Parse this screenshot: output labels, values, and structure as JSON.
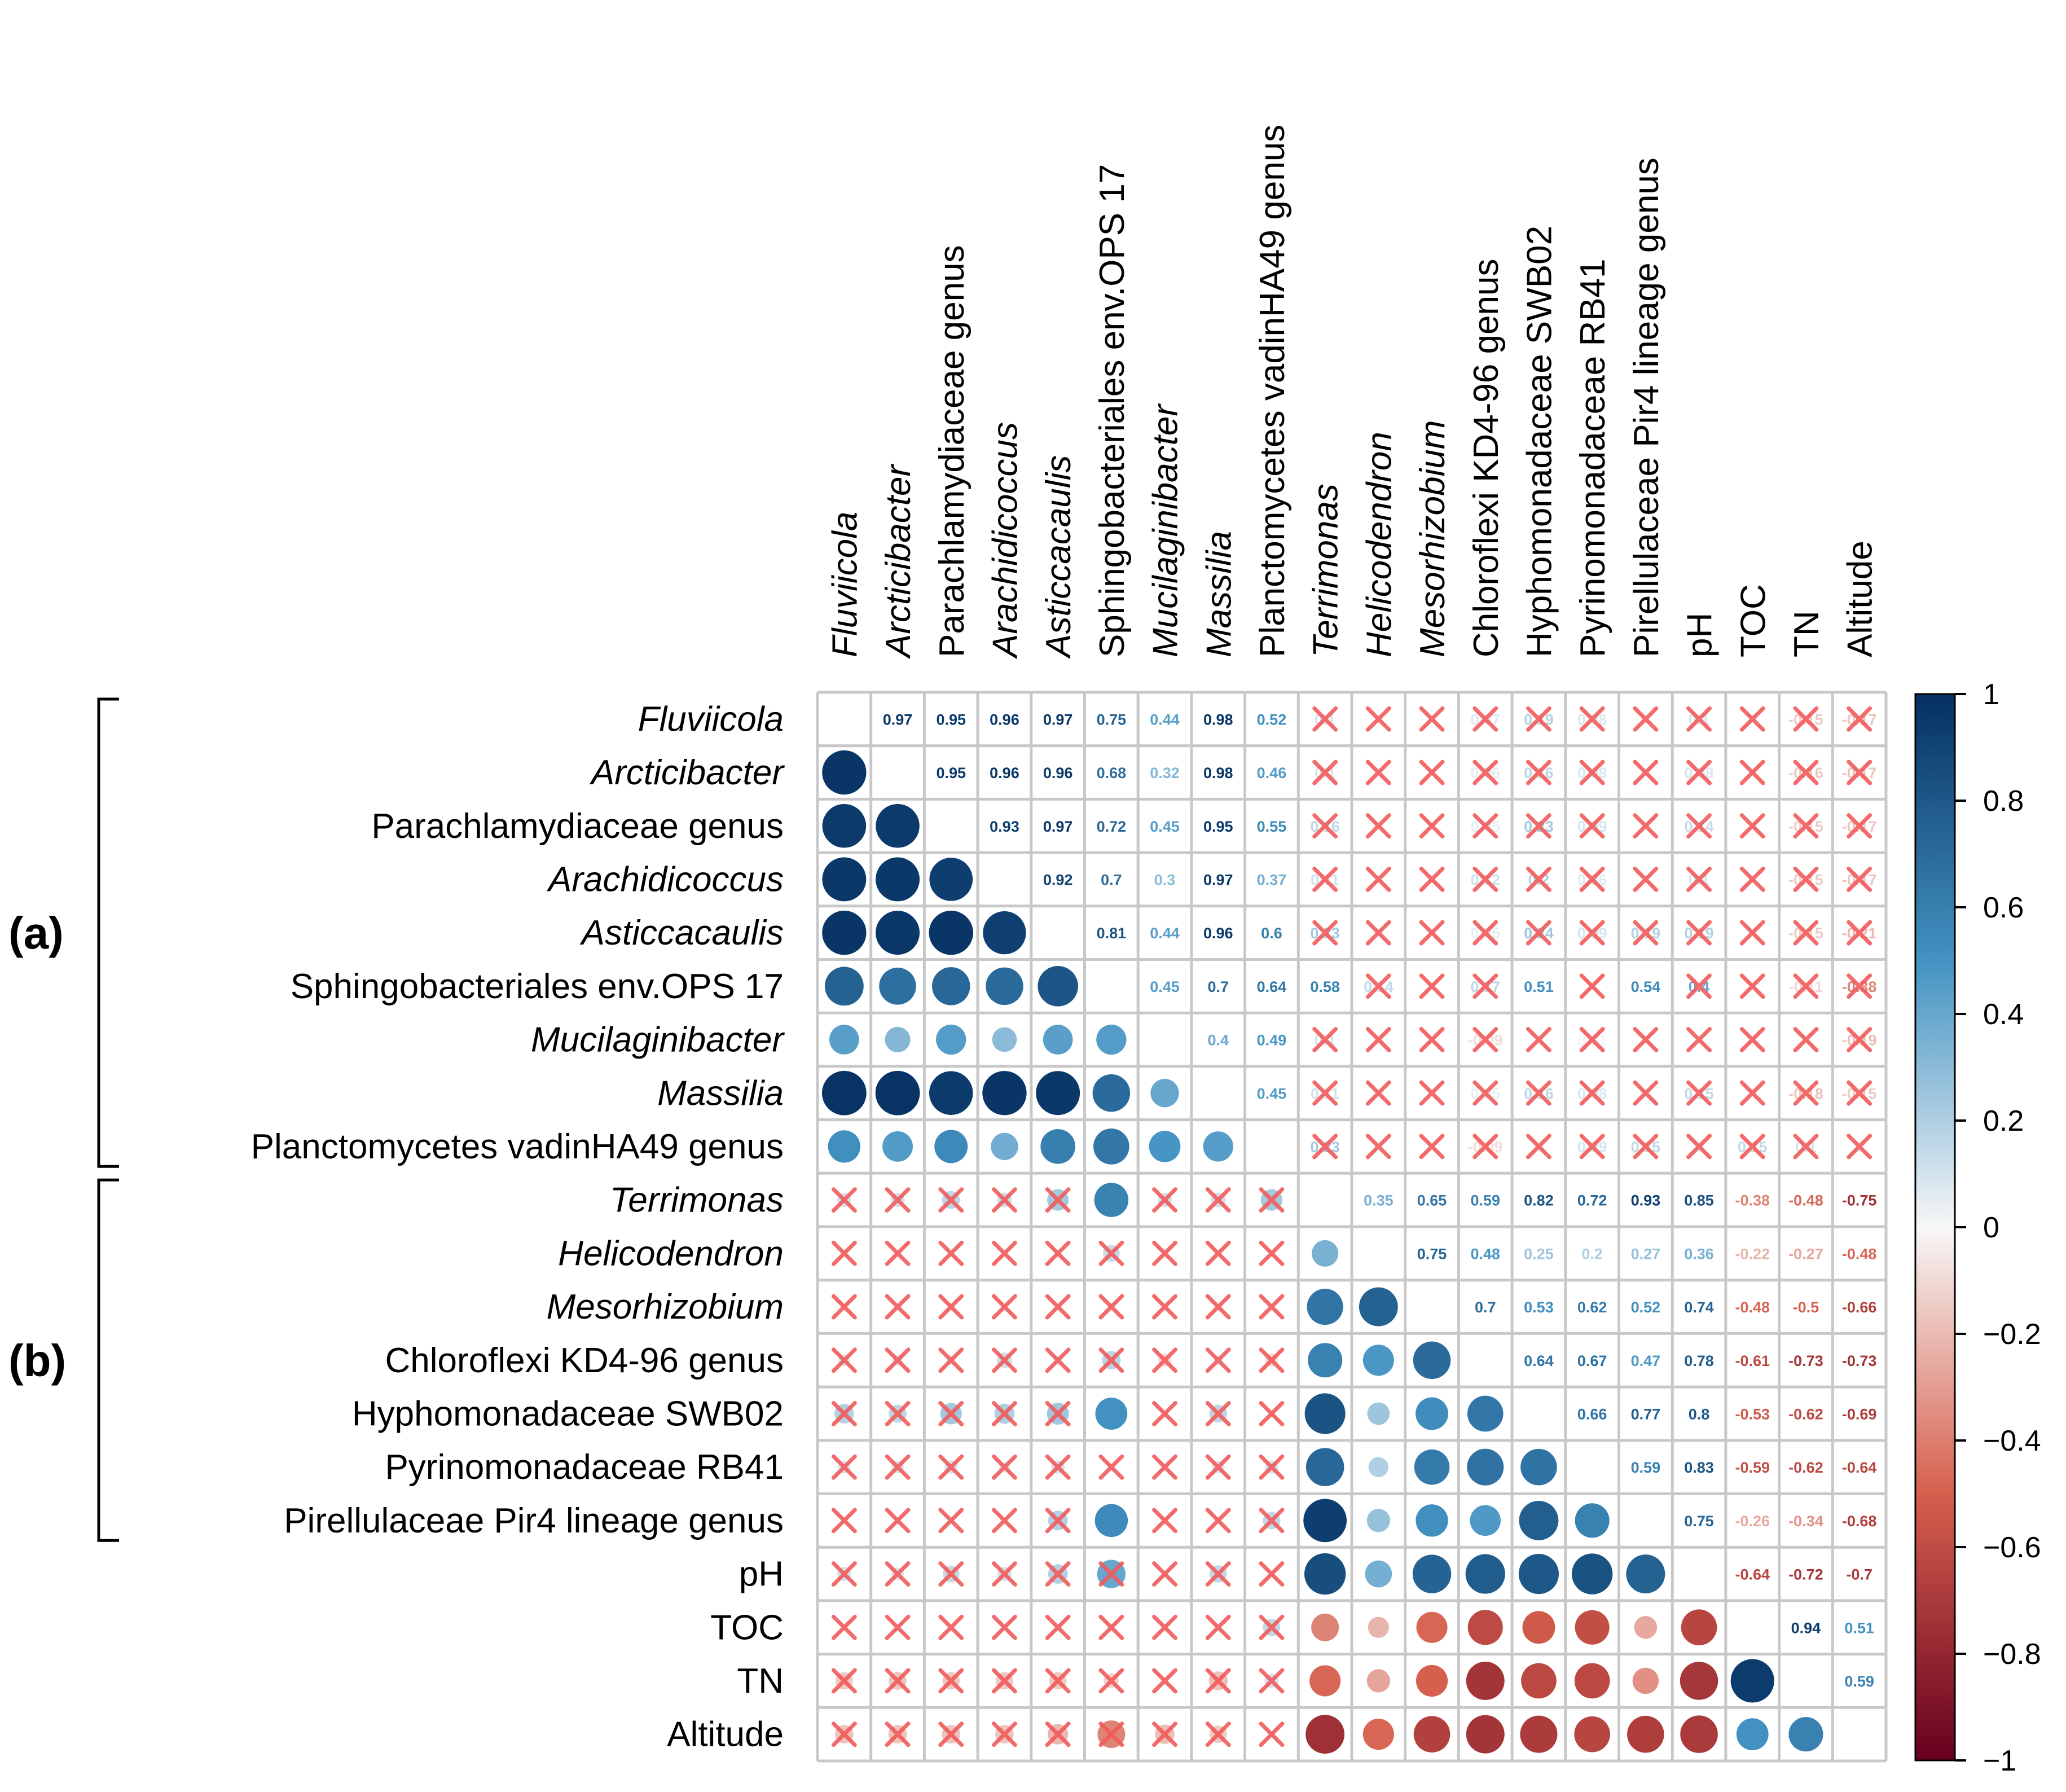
{
  "chart_data": {
    "type": "heatmap",
    "variables": [
      {
        "name": "Fluviicola",
        "italic": true
      },
      {
        "name": "Arcticibacter",
        "italic": true
      },
      {
        "name": "Parachlamydiaceae genus",
        "italic": false
      },
      {
        "name": "Arachidicoccus",
        "italic": true
      },
      {
        "name": "Asticcacaulis",
        "italic": true
      },
      {
        "name": "Sphingobacteriales env.OPS 17",
        "italic": false
      },
      {
        "name": "Mucilaginibacter",
        "italic": true
      },
      {
        "name": "Massilia",
        "italic": true
      },
      {
        "name": "Planctomycetes vadinHA49 genus",
        "italic": false
      },
      {
        "name": "Terrimonas",
        "italic": true
      },
      {
        "name": "Helicodendron",
        "italic": true
      },
      {
        "name": "Mesorhizobium",
        "italic": true
      },
      {
        "name": "Chloroflexi KD4-96 genus",
        "italic": false
      },
      {
        "name": "Hyphomonadaceae SWB02",
        "italic": false
      },
      {
        "name": "Pyrinomonadaceae RB41",
        "italic": false
      },
      {
        "name": "Pirellulaceae Pir4 lineage genus",
        "italic": false
      },
      {
        "name": "pH",
        "italic": false
      },
      {
        "name": "TOC",
        "italic": false
      },
      {
        "name": "TN",
        "italic": false
      },
      {
        "name": "Altitude",
        "italic": false
      }
    ],
    "groups": [
      {
        "label": "(a)",
        "from": 0,
        "to": 8
      },
      {
        "label": "(b)",
        "from": 9,
        "to": 15
      }
    ],
    "upper_labels": [
      [
        "",
        "0.97",
        "0.95",
        "0.96",
        "0.97",
        "0.75",
        "0.44",
        "0.98",
        "0.52",
        "0.1",
        "",
        "",
        "0.07",
        "0.19",
        "0.08",
        "",
        "0.1",
        "",
        "-0.15",
        "-0.17"
      ],
      [
        "",
        "",
        "0.95",
        "0.96",
        "0.96",
        "0.68",
        "0.32",
        "0.98",
        "0.46",
        "0.1",
        "",
        "",
        "0.06",
        "0.16",
        "0.08",
        "",
        "0.08",
        "",
        "-0.16",
        "-0.17"
      ],
      [
        "",
        "",
        "",
        "0.93",
        "0.97",
        "0.72",
        "0.45",
        "0.95",
        "0.55",
        "0.16",
        "",
        "",
        "0.05",
        "0.23",
        "0.09",
        "",
        "0.14",
        "",
        "-0.15",
        "-0.17"
      ],
      [
        "",
        "",
        "",
        "",
        "0.92",
        "0.7",
        "0.3",
        "0.97",
        "0.37",
        "0.11",
        "",
        "",
        "0.12",
        "0.2",
        "0.06",
        "",
        "0.1",
        "",
        "-0.15",
        "-0.17"
      ],
      [
        "",
        "",
        "",
        "",
        "",
        "0.81",
        "0.44",
        "0.96",
        "0.6",
        "0.23",
        "",
        "",
        "0.05",
        "0.24",
        "0.09",
        "0.19",
        "0.19",
        "",
        "-0.15",
        "-0.21"
      ],
      [
        "",
        "",
        "",
        "",
        "",
        "",
        "0.45",
        "0.7",
        "0.64",
        "0.58",
        "0.14",
        "",
        "0.17",
        "0.51",
        "",
        "0.54",
        "0.4",
        "",
        "-0.11",
        "-0.38"
      ],
      [
        "",
        "",
        "",
        "",
        "",
        "",
        "",
        "0.4",
        "0.49",
        "0.1",
        "",
        "",
        "-0.09",
        "",
        "0.01",
        "",
        "",
        "",
        "",
        "-0.19"
      ],
      [
        "",
        "",
        "",
        "",
        "",
        "",
        "",
        "",
        "0.45",
        "0.11",
        "",
        "",
        "0.05",
        "0.16",
        "0.08",
        "",
        "0.15",
        "",
        "-0.18",
        "-0.15"
      ],
      [
        "",
        "",
        "",
        "",
        "",
        "",
        "",
        "",
        "",
        "0.23",
        "",
        "",
        "-0.09",
        "",
        "0.09",
        "0.15",
        "",
        "0.15",
        "0.1",
        ""
      ],
      [
        "",
        "",
        "",
        "",
        "",
        "",
        "",
        "",
        "",
        "",
        "0.35",
        "0.65",
        "0.59",
        "0.82",
        "0.72",
        "0.93",
        "0.85",
        "-0.38",
        "-0.48",
        "-0.75"
      ],
      [
        "",
        "",
        "",
        "",
        "",
        "",
        "",
        "",
        "",
        "",
        "",
        "0.75",
        "0.48",
        "0.25",
        "0.2",
        "0.27",
        "0.36",
        "-0.22",
        "-0.27",
        "-0.48"
      ],
      [
        "",
        "",
        "",
        "",
        "",
        "",
        "",
        "",
        "",
        "",
        "",
        "",
        "0.7",
        "0.53",
        "0.62",
        "0.52",
        "0.74",
        "-0.48",
        "-0.5",
        "-0.66"
      ],
      [
        "",
        "",
        "",
        "",
        "",
        "",
        "",
        "",
        "",
        "",
        "",
        "",
        "",
        "0.64",
        "0.67",
        "0.47",
        "0.78",
        "-0.61",
        "-0.73",
        "-0.73"
      ],
      [
        "",
        "",
        "",
        "",
        "",
        "",
        "",
        "",
        "",
        "",
        "",
        "",
        "",
        "",
        "0.66",
        "0.77",
        "0.8",
        "-0.53",
        "-0.62",
        "-0.69"
      ],
      [
        "",
        "",
        "",
        "",
        "",
        "",
        "",
        "",
        "",
        "",
        "",
        "",
        "",
        "",
        "",
        "0.59",
        "0.83",
        "-0.59",
        "-0.62",
        "-0.64"
      ],
      [
        "",
        "",
        "",
        "",
        "",
        "",
        "",
        "",
        "",
        "",
        "",
        "",
        "",
        "",
        "",
        "",
        "0.75",
        "-0.26",
        "-0.34",
        "-0.68"
      ],
      [
        "",
        "",
        "",
        "",
        "",
        "",
        "",
        "",
        "",
        "",
        "",
        "",
        "",
        "",
        "",
        "",
        "",
        "-0.64",
        "-0.72",
        "-0.7"
      ],
      [
        "",
        "",
        "",
        "",
        "",
        "",
        "",
        "",
        "",
        "",
        "",
        "",
        "",
        "",
        "",
        "",
        "",
        "",
        "0.94",
        "0.51"
      ],
      [
        "",
        "",
        "",
        "",
        "",
        "",
        "",
        "",
        "",
        "",
        "",
        "",
        "",
        "",
        "",
        "",
        "",
        "",
        "",
        "0.59"
      ],
      [
        "",
        "",
        "",
        "",
        "",
        "",
        "",
        "",
        "",
        "",
        "",
        "",
        "",
        "",
        "",
        "",
        "",
        "",
        "",
        ""
      ]
    ],
    "matrix": [
      [
        1,
        0.97,
        0.95,
        0.96,
        0.97,
        0.75,
        0.44,
        0.98,
        0.52,
        0.1,
        0.02,
        0.02,
        0.07,
        0.19,
        0.08,
        0.02,
        0.1,
        -0.02,
        -0.15,
        -0.17
      ],
      [
        0.97,
        1,
        0.95,
        0.96,
        0.96,
        0.68,
        0.32,
        0.98,
        0.46,
        0.1,
        0.02,
        0.02,
        0.06,
        0.16,
        0.08,
        0.02,
        0.08,
        -0.02,
        -0.16,
        -0.17
      ],
      [
        0.95,
        0.95,
        1,
        0.93,
        0.97,
        0.72,
        0.45,
        0.95,
        0.55,
        0.16,
        0.02,
        0.02,
        0.05,
        0.23,
        0.09,
        0.02,
        0.14,
        -0.02,
        -0.15,
        -0.17
      ],
      [
        0.96,
        0.96,
        0.93,
        1,
        0.92,
        0.7,
        0.3,
        0.97,
        0.37,
        0.11,
        0.02,
        0.02,
        0.12,
        0.2,
        0.06,
        0.02,
        0.1,
        -0.02,
        -0.15,
        -0.17
      ],
      [
        0.97,
        0.96,
        0.97,
        0.92,
        1,
        0.81,
        0.44,
        0.96,
        0.6,
        0.23,
        0.02,
        0.02,
        0.05,
        0.24,
        0.09,
        0.19,
        0.19,
        -0.02,
        -0.15,
        -0.21
      ],
      [
        0.75,
        0.68,
        0.72,
        0.7,
        0.81,
        1,
        0.45,
        0.7,
        0.64,
        0.58,
        0.14,
        0.03,
        0.17,
        0.51,
        0.03,
        0.54,
        0.4,
        -0.03,
        -0.11,
        -0.38
      ],
      [
        0.44,
        0.32,
        0.45,
        0.3,
        0.44,
        0.45,
        1,
        0.4,
        0.49,
        0.1,
        0.02,
        0.02,
        -0.09,
        0.02,
        0.01,
        0.02,
        0.02,
        -0.02,
        -0.02,
        -0.19
      ],
      [
        0.98,
        0.98,
        0.95,
        0.97,
        0.96,
        0.7,
        0.4,
        1,
        0.45,
        0.11,
        0.02,
        0.02,
        0.05,
        0.16,
        0.08,
        0.02,
        0.15,
        -0.02,
        -0.18,
        -0.15
      ],
      [
        0.52,
        0.46,
        0.55,
        0.37,
        0.6,
        0.64,
        0.49,
        0.45,
        1,
        0.23,
        0.02,
        0.02,
        -0.09,
        0.02,
        0.09,
        0.15,
        0.02,
        0.15,
        0.1,
        0.02
      ],
      [
        0.1,
        0.1,
        0.16,
        0.11,
        0.23,
        0.58,
        0.1,
        0.11,
        0.23,
        1,
        0.35,
        0.65,
        0.59,
        0.82,
        0.72,
        0.93,
        0.85,
        -0.38,
        -0.48,
        -0.75
      ],
      [
        0.02,
        0.02,
        0.02,
        0.02,
        0.02,
        0.14,
        0.02,
        0.02,
        0.02,
        0.35,
        1,
        0.75,
        0.48,
        0.25,
        0.2,
        0.27,
        0.36,
        -0.22,
        -0.27,
        -0.48
      ],
      [
        0.02,
        0.02,
        0.02,
        0.02,
        0.02,
        0.03,
        0.02,
        0.02,
        0.02,
        0.65,
        0.75,
        1,
        0.7,
        0.53,
        0.62,
        0.52,
        0.74,
        -0.48,
        -0.5,
        -0.66
      ],
      [
        0.07,
        0.06,
        0.05,
        0.12,
        0.05,
        0.17,
        -0.09,
        0.05,
        -0.09,
        0.59,
        0.48,
        0.7,
        1,
        0.64,
        0.67,
        0.47,
        0.78,
        -0.61,
        -0.73,
        -0.73
      ],
      [
        0.19,
        0.16,
        0.23,
        0.2,
        0.24,
        0.51,
        0.02,
        0.16,
        0.02,
        0.82,
        0.25,
        0.53,
        0.64,
        1,
        0.66,
        0.77,
        0.8,
        -0.53,
        -0.62,
        -0.69
      ],
      [
        0.08,
        0.08,
        0.09,
        0.06,
        0.09,
        0.03,
        0.01,
        0.08,
        0.09,
        0.72,
        0.2,
        0.62,
        0.67,
        0.66,
        1,
        0.59,
        0.83,
        -0.59,
        -0.62,
        -0.64
      ],
      [
        0.02,
        0.02,
        0.02,
        0.02,
        0.19,
        0.54,
        0.02,
        0.02,
        0.15,
        0.93,
        0.27,
        0.52,
        0.47,
        0.77,
        0.59,
        1,
        0.75,
        -0.26,
        -0.34,
        -0.68
      ],
      [
        0.1,
        0.08,
        0.14,
        0.1,
        0.19,
        0.4,
        0.02,
        0.15,
        0.02,
        0.85,
        0.36,
        0.74,
        0.78,
        0.8,
        0.83,
        0.75,
        1,
        -0.64,
        -0.72,
        -0.7
      ],
      [
        -0.02,
        -0.02,
        -0.02,
        -0.02,
        -0.02,
        -0.03,
        -0.02,
        -0.02,
        0.15,
        -0.38,
        -0.22,
        -0.48,
        -0.61,
        -0.53,
        -0.59,
        -0.26,
        -0.64,
        1,
        0.94,
        0.51
      ],
      [
        -0.15,
        -0.16,
        -0.15,
        -0.15,
        -0.15,
        -0.11,
        -0.02,
        -0.18,
        0.1,
        -0.48,
        -0.27,
        -0.5,
        -0.73,
        -0.62,
        -0.62,
        -0.34,
        -0.72,
        0.94,
        1,
        0.59
      ],
      [
        -0.17,
        -0.17,
        -0.17,
        -0.17,
        -0.21,
        -0.38,
        -0.19,
        -0.15,
        0.02,
        -0.75,
        -0.48,
        -0.66,
        -0.73,
        -0.69,
        -0.64,
        -0.68,
        -0.7,
        0.51,
        0.59,
        1
      ]
    ],
    "significant": [
      [
        1,
        1,
        1,
        1,
        1,
        1,
        1,
        1,
        1,
        0,
        0,
        0,
        0,
        0,
        0,
        0,
        0,
        0,
        0,
        0
      ],
      [
        1,
        1,
        1,
        1,
        1,
        1,
        1,
        1,
        1,
        0,
        0,
        0,
        0,
        0,
        0,
        0,
        0,
        0,
        0,
        0
      ],
      [
        1,
        1,
        1,
        1,
        1,
        1,
        1,
        1,
        1,
        0,
        0,
        0,
        0,
        0,
        0,
        0,
        0,
        0,
        0,
        0
      ],
      [
        1,
        1,
        1,
        1,
        1,
        1,
        1,
        1,
        1,
        0,
        0,
        0,
        0,
        0,
        0,
        0,
        0,
        0,
        0,
        0
      ],
      [
        1,
        1,
        1,
        1,
        1,
        1,
        1,
        1,
        1,
        0,
        0,
        0,
        0,
        0,
        0,
        0,
        0,
        0,
        0,
        0
      ],
      [
        1,
        1,
        1,
        1,
        1,
        1,
        1,
        1,
        1,
        1,
        0,
        0,
        0,
        1,
        0,
        1,
        0,
        0,
        0,
        0
      ],
      [
        1,
        1,
        1,
        1,
        1,
        1,
        1,
        1,
        1,
        0,
        0,
        0,
        0,
        0,
        0,
        0,
        0,
        0,
        0,
        0
      ],
      [
        1,
        1,
        1,
        1,
        1,
        1,
        1,
        1,
        1,
        0,
        0,
        0,
        0,
        0,
        0,
        0,
        0,
        0,
        0,
        0
      ],
      [
        1,
        1,
        1,
        1,
        1,
        1,
        1,
        1,
        1,
        0,
        0,
        0,
        0,
        0,
        0,
        0,
        0,
        0,
        0,
        0
      ],
      [
        0,
        0,
        0,
        0,
        0,
        1,
        0,
        0,
        0,
        1,
        1,
        1,
        1,
        1,
        1,
        1,
        1,
        1,
        1,
        1
      ],
      [
        0,
        0,
        0,
        0,
        0,
        0,
        0,
        0,
        0,
        1,
        1,
        1,
        1,
        1,
        1,
        1,
        1,
        1,
        1,
        1
      ],
      [
        0,
        0,
        0,
        0,
        0,
        0,
        0,
        0,
        0,
        1,
        1,
        1,
        1,
        1,
        1,
        1,
        1,
        1,
        1,
        1
      ],
      [
        0,
        0,
        0,
        0,
        0,
        0,
        0,
        0,
        0,
        1,
        1,
        1,
        1,
        1,
        1,
        1,
        1,
        1,
        1,
        1
      ],
      [
        0,
        0,
        0,
        0,
        0,
        1,
        0,
        0,
        0,
        1,
        1,
        1,
        1,
        1,
        1,
        1,
        1,
        1,
        1,
        1
      ],
      [
        0,
        0,
        0,
        0,
        0,
        0,
        0,
        0,
        0,
        1,
        1,
        1,
        1,
        1,
        1,
        1,
        1,
        1,
        1,
        1
      ],
      [
        0,
        0,
        0,
        0,
        0,
        1,
        0,
        0,
        0,
        1,
        1,
        1,
        1,
        1,
        1,
        1,
        1,
        1,
        1,
        1
      ],
      [
        0,
        0,
        0,
        0,
        0,
        0,
        0,
        0,
        0,
        1,
        1,
        1,
        1,
        1,
        1,
        1,
        1,
        1,
        1,
        1
      ],
      [
        0,
        0,
        0,
        0,
        0,
        0,
        0,
        0,
        0,
        1,
        1,
        1,
        1,
        1,
        1,
        1,
        1,
        1,
        1,
        1
      ],
      [
        0,
        0,
        0,
        0,
        0,
        0,
        0,
        0,
        0,
        1,
        1,
        1,
        1,
        1,
        1,
        1,
        1,
        1,
        1,
        1
      ],
      [
        0,
        0,
        0,
        0,
        0,
        0,
        0,
        0,
        0,
        1,
        1,
        1,
        1,
        1,
        1,
        1,
        1,
        1,
        1,
        1
      ]
    ],
    "colorbar": {
      "ticks": [
        "1",
        "0.8",
        "0.6",
        "0.4",
        "0.2",
        "0",
        "−0.2",
        "−0.4",
        "−0.6",
        "−0.8",
        "−1"
      ],
      "range": [
        -1,
        1
      ],
      "colors": {
        "neg1": "#67001f",
        "neg05": "#d6604d",
        "zero": "#f7f7f7",
        "pos05": "#4393c3",
        "pos1": "#053061"
      }
    },
    "insignificant_mark_color": "#f25a5a",
    "lower": "circle",
    "upper": "number"
  }
}
